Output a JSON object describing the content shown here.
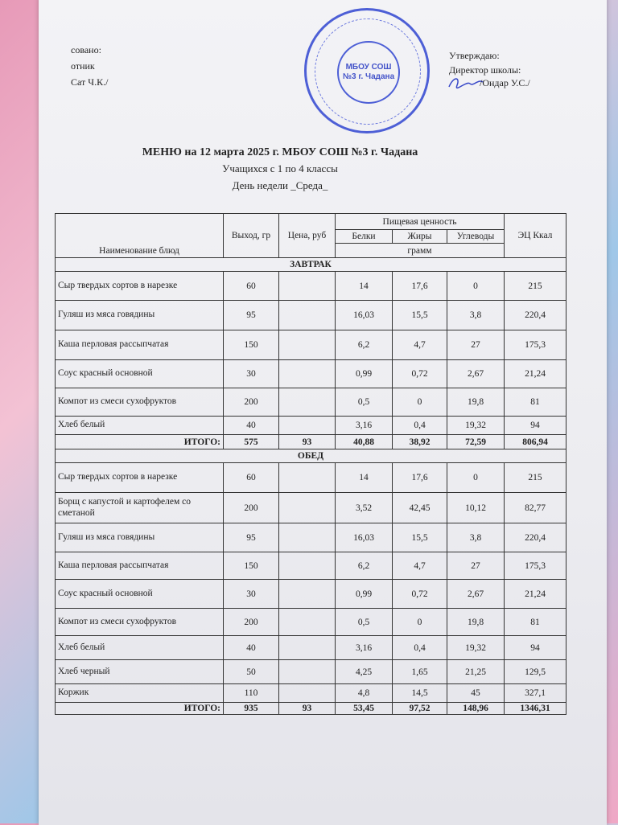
{
  "header": {
    "left": {
      "line1": "совано:",
      "line2": "отник",
      "line3": "Сат Ч.К./"
    },
    "stamp": "МБОУ СОШ №3 г. Чадана",
    "right": {
      "line1": "Утверждаю:",
      "line2": "Директор школы:",
      "line3": "/Ондар У.С./"
    },
    "title": "МЕНЮ на 12 марта 2025 г. МБОУ СОШ №3 г. Чадана",
    "subtitle": "Учащихся с 1 по 4 классы",
    "day": "День недели _Среда_"
  },
  "table": {
    "columns": {
      "name": "Наименование блюд",
      "yield": "Выход, гр",
      "price": "Цена, руб",
      "nutrition": "Пищевая ценность",
      "protein": "Белки",
      "fat": "Жиры",
      "carbs": "Углеводы",
      "unit": "грамм",
      "kcal": "ЭЦ Ккал"
    },
    "sections": [
      {
        "title": "ЗАВТРАК",
        "rows": [
          {
            "name": "Сыр твердых сортов в нарезке",
            "yield": "60",
            "protein": "14",
            "fat": "17,6",
            "carbs": "0",
            "kcal": "215"
          },
          {
            "name": "Гуляш из мяса говядины",
            "yield": "95",
            "protein": "16,03",
            "fat": "15,5",
            "carbs": "3,8",
            "kcal": "220,4"
          },
          {
            "name": "Каша перловая рассыпчатая",
            "yield": "150",
            "protein": "6,2",
            "fat": "4,7",
            "carbs": "27",
            "kcal": "175,3"
          },
          {
            "name": "Соус красный основной",
            "yield": "30",
            "protein": "0,99",
            "fat": "0,72",
            "carbs": "2,67",
            "kcal": "21,24"
          },
          {
            "name": "Компот из смеси сухофруктов",
            "yield": "200",
            "protein": "0,5",
            "fat": "0",
            "carbs": "19,8",
            "kcal": "81"
          },
          {
            "name": "Хлеб белый",
            "yield": "40",
            "protein": "3,16",
            "fat": "0,4",
            "carbs": "19,32",
            "kcal": "94"
          }
        ],
        "total": {
          "label": "ИТОГО:",
          "yield": "575",
          "price": "93",
          "protein": "40,88",
          "fat": "38,92",
          "carbs": "72,59",
          "kcal": "806,94"
        }
      },
      {
        "title": "ОБЕД",
        "rows": [
          {
            "name": "Сыр твердых сортов в нарезке",
            "yield": "60",
            "protein": "14",
            "fat": "17,6",
            "carbs": "0",
            "kcal": "215"
          },
          {
            "name": "Борщ с капустой и картофелем со сметаной",
            "yield": "200",
            "protein": "3,52",
            "fat": "42,45",
            "carbs": "10,12",
            "kcal": "82,77"
          },
          {
            "name": "Гуляш из мяса говядины",
            "yield": "95",
            "protein": "16,03",
            "fat": "15,5",
            "carbs": "3,8",
            "kcal": "220,4"
          },
          {
            "name": "Каша перловая рассыпчатая",
            "yield": "150",
            "protein": "6,2",
            "fat": "4,7",
            "carbs": "27",
            "kcal": "175,3"
          },
          {
            "name": "Соус красный основной",
            "yield": "30",
            "protein": "0,99",
            "fat": "0,72",
            "carbs": "2,67",
            "kcal": "21,24"
          },
          {
            "name": "Компот из смеси сухофруктов",
            "yield": "200",
            "protein": "0,5",
            "fat": "0",
            "carbs": "19,8",
            "kcal": "81"
          },
          {
            "name": "Хлеб белый",
            "yield": "40",
            "protein": "3,16",
            "fat": "0,4",
            "carbs": "19,32",
            "kcal": "94"
          },
          {
            "name": "Хлеб черный",
            "yield": "50",
            "protein": "4,25",
            "fat": "1,65",
            "carbs": "21,25",
            "kcal": "129,5"
          },
          {
            "name": "Коржик",
            "yield": "110",
            "protein": "4,8",
            "fat": "14,5",
            "carbs": "45",
            "kcal": "327,1"
          }
        ],
        "total": {
          "label": "ИТОГО:",
          "yield": "935",
          "price": "93",
          "protein": "53,45",
          "fat": "97,52",
          "carbs": "148,96",
          "kcal": "1346,31"
        }
      }
    ]
  }
}
